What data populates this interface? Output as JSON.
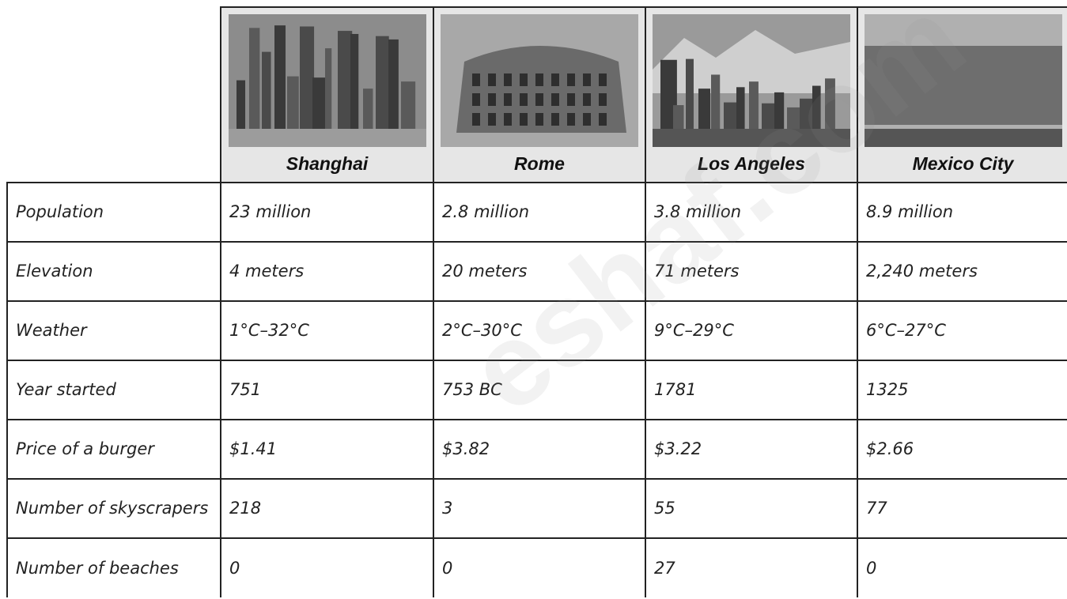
{
  "header": {
    "cities": [
      "Shanghai",
      "Rome",
      "Los Angeles",
      "Mexico City"
    ]
  },
  "table": {
    "rows": [
      [
        "Population",
        "23 million",
        "2.8 million",
        "3.8 million",
        "8.9 million"
      ],
      [
        "Elevation",
        "4 meters",
        "20 meters",
        "71 meters",
        "2,240 meters"
      ],
      [
        "Weather",
        "1°C–32°C",
        "2°C–30°C",
        "9°C–29°C",
        "6°C–27°C"
      ],
      [
        "Year started",
        "751",
        "753 BC",
        "1781",
        "1325"
      ],
      [
        "Price of a burger",
        "$1.41",
        "$3.82",
        "$3.22",
        "$2.66"
      ],
      [
        "Number of skyscrapers",
        "218",
        "3",
        "55",
        "77"
      ],
      [
        "Number of beaches",
        "0",
        "0",
        "27",
        "0"
      ]
    ]
  },
  "watermark": "eshaf.com"
}
